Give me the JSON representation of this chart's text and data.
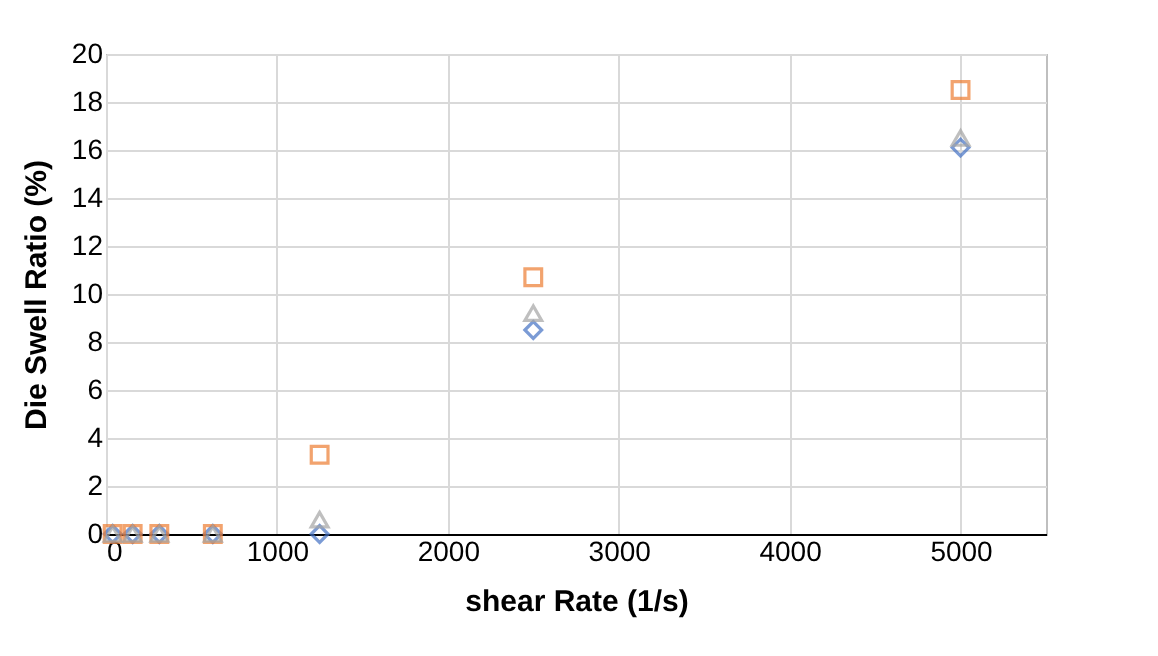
{
  "chart_data": {
    "type": "scatter",
    "xlabel": "shear Rate (1/s)",
    "ylabel": "Die Swell Ratio (%)",
    "x": [
      39,
      156,
      312,
      625,
      1250,
      2500,
      5000
    ],
    "series": [
      {
        "color": "#4472c4",
        "marker": "diamond",
        "values": [
          0,
          0,
          0,
          0,
          0,
          8.5,
          16.1
        ]
      },
      {
        "color": "#ed7d31",
        "marker": "square",
        "values": [
          0,
          0,
          0,
          0,
          3.3,
          10.7,
          18.5
        ]
      },
      {
        "color": "#a5a5a5",
        "marker": "triangle",
        "values": [
          0,
          0,
          0,
          0,
          0.6,
          9.2,
          16.5
        ]
      }
    ],
    "xlim": [
      0,
      5500
    ],
    "xticks": [
      0,
      1000,
      2000,
      3000,
      4000,
      5000
    ],
    "ylim": [
      0,
      20
    ],
    "yticks": [
      0,
      2,
      4,
      6,
      8,
      10,
      12,
      14,
      16,
      18,
      20
    ],
    "grid": true
  }
}
